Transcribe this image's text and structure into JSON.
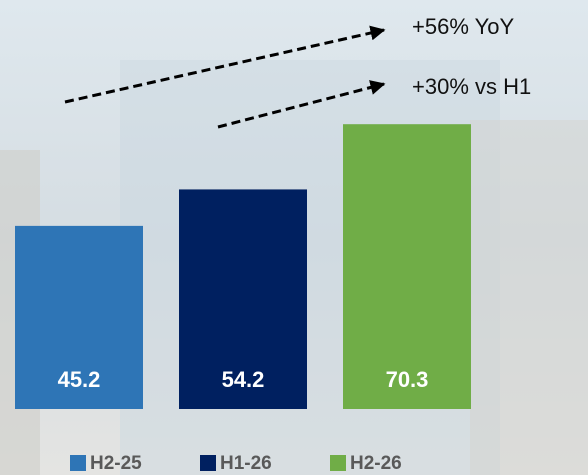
{
  "chart_data": {
    "type": "bar",
    "categories": [
      "H2-25",
      "H1-26",
      "H2-26"
    ],
    "series": [
      {
        "name": "H2-25",
        "color": "#2e75b6"
      },
      {
        "name": "H1-26",
        "color": "#002060"
      },
      {
        "name": "H2-26",
        "color": "#70ad47"
      }
    ],
    "values": [
      45.2,
      54.2,
      70.3
    ],
    "ylim": [
      0,
      78
    ],
    "annotations": [
      "+56% YoY",
      "+30% vs H1"
    ]
  }
}
